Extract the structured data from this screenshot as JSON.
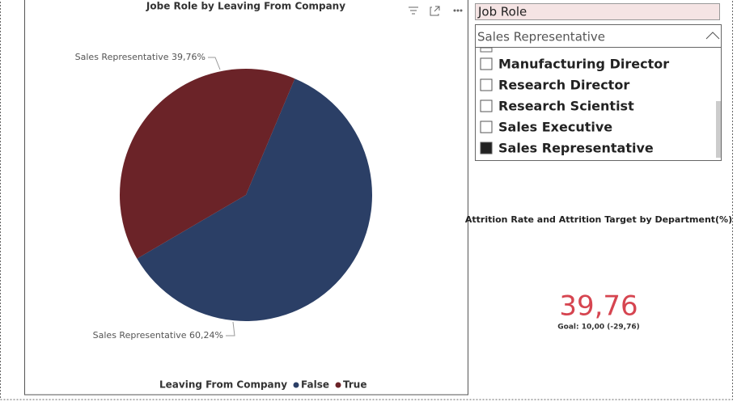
{
  "chart_data": {
    "type": "pie",
    "title": "Jobe Role by Leaving From Company",
    "legend_title": "Leaving From Company",
    "categories": [
      "False",
      "True"
    ],
    "values": [
      60.24,
      39.76
    ],
    "value_labels": [
      "Sales Representative 60,24%",
      "Sales Representative 39,76%"
    ],
    "colors": [
      "#2b3f66",
      "#6b2328"
    ]
  },
  "slicer": {
    "title": "Job Role",
    "selected": "Sales Representative",
    "items": [
      "Manufacturing Director",
      "Research Director",
      "Research Scientist",
      "Sales Executive",
      "Sales Representative"
    ],
    "checked": [
      false,
      false,
      false,
      false,
      true
    ]
  },
  "card": {
    "title": "Attrition Rate and Attrition Target by Department(%)",
    "value": "39,76",
    "goal": "Goal: 10,00 (-29,76)"
  }
}
